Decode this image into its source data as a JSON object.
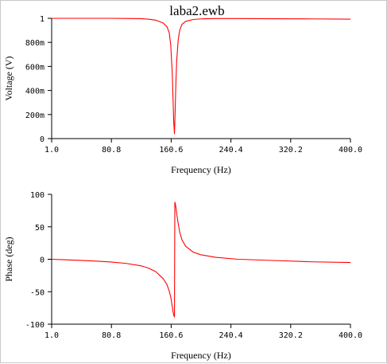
{
  "window_title": "laba2.ewb",
  "chart_data": [
    {
      "type": "line",
      "title": "laba2.ewb",
      "xlabel": "Frequency (Hz)",
      "ylabel": "Voltage (V)",
      "x_ticks": [
        "1.0",
        "80.8",
        "160.6",
        "240.4",
        "320.2",
        "400.0"
      ],
      "y_ticks": [
        "0",
        "200m",
        "400m",
        "600m",
        "800m",
        "1"
      ],
      "xlim": [
        1.0,
        400.0
      ],
      "ylim": [
        0,
        1
      ],
      "grid": false,
      "line_color": "#ff0000",
      "series": [
        {
          "x": [
            1,
            20,
            40,
            60,
            80,
            100,
            120,
            130,
            140,
            150,
            155,
            158,
            160,
            162,
            163,
            164,
            165,
            166,
            167,
            168,
            170,
            172,
            175,
            180,
            190,
            200,
            220,
            250,
            300,
            350,
            400
          ],
          "values": [
            1.0,
            1.0,
            1.0,
            1.0,
            1.0,
            0.999,
            0.997,
            0.993,
            0.985,
            0.96,
            0.93,
            0.88,
            0.78,
            0.55,
            0.35,
            0.14,
            0.04,
            0.25,
            0.48,
            0.65,
            0.82,
            0.9,
            0.95,
            0.975,
            0.99,
            0.995,
            0.998,
            0.998,
            0.996,
            0.995,
            0.993
          ]
        }
      ]
    },
    {
      "type": "line",
      "xlabel": "Frequency (Hz)",
      "ylabel": "Phase (deg)",
      "x_ticks": [
        "1.0",
        "80.8",
        "160.6",
        "240.4",
        "320.2",
        "400.0"
      ],
      "y_ticks": [
        "-100",
        "-50",
        "0",
        "50",
        "100"
      ],
      "xlim": [
        1.0,
        400.0
      ],
      "ylim": [
        -100,
        100
      ],
      "grid": false,
      "line_color": "#ff0000",
      "series": [
        {
          "x": [
            1,
            20,
            40,
            60,
            80,
            100,
            120,
            130,
            140,
            150,
            155,
            158,
            160,
            162,
            163,
            164,
            165,
            165.5,
            166,
            167,
            168,
            170,
            172,
            175,
            180,
            190,
            200,
            220,
            250,
            300,
            350,
            400
          ],
          "values": [
            0,
            -0.8,
            -1.7,
            -2.8,
            -4.2,
            -6.3,
            -10,
            -13.5,
            -19,
            -30,
            -39,
            -49,
            -58,
            -72,
            -80,
            -86,
            -89,
            88,
            86,
            80,
            70,
            55,
            42,
            30,
            20,
            11,
            7,
            3,
            0,
            -2,
            -4,
            -5
          ]
        }
      ]
    }
  ]
}
